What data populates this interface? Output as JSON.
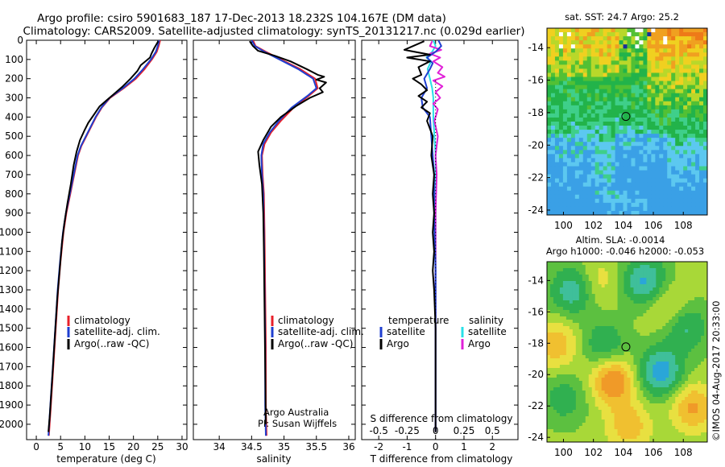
{
  "colors": {
    "climatology": "#e8202a",
    "satellite": "#1f3fd0",
    "argo": "#000000",
    "sal_sat": "#28e0e8",
    "sal_argo": "#e020d8"
  },
  "header": {
    "title_line1": "Argo profile: csiro 5901683_187 17-Dec-2013 18.232S 104.167E (DM data)",
    "title_line2": "Climatology: CARS2009. Satellite-adjusted climatology: synTS_20131217.nc (0.029d earlier)"
  },
  "depth_axis": {
    "ticks": [
      0,
      100,
      200,
      300,
      400,
      500,
      600,
      700,
      800,
      900,
      1000,
      1100,
      1200,
      1300,
      1400,
      1500,
      1600,
      1700,
      1800,
      1900,
      2000
    ],
    "range": [
      0,
      2080
    ]
  },
  "chart_data": [
    {
      "type": "line",
      "id": "temperature",
      "xlabel": "temperature (deg C)",
      "xlim": [
        -2,
        31
      ],
      "xticks": [
        0,
        5,
        10,
        15,
        20,
        25,
        30
      ],
      "ylabel": "depth",
      "legend": [
        "climatology",
        "satellite-adj. clim.",
        "Argo(..raw -QC)"
      ],
      "series": [
        {
          "name": "climatology",
          "points": [
            [
              25.5,
              0
            ],
            [
              25.2,
              30
            ],
            [
              24.8,
              60
            ],
            [
              23.8,
              100
            ],
            [
              22.3,
              150
            ],
            [
              20.5,
              200
            ],
            [
              18,
              250
            ],
            [
              15.2,
              300
            ],
            [
              13.5,
              350
            ],
            [
              12.3,
              400
            ],
            [
              11.3,
              450
            ],
            [
              10.3,
              500
            ],
            [
              9.3,
              550
            ],
            [
              8.6,
              600
            ],
            [
              7.8,
              700
            ],
            [
              7.0,
              800
            ],
            [
              6.2,
              900
            ],
            [
              5.6,
              1000
            ],
            [
              5.0,
              1150
            ],
            [
              4.5,
              1300
            ],
            [
              4.0,
              1500
            ],
            [
              3.5,
              1700
            ],
            [
              3.0,
              1900
            ],
            [
              2.6,
              2060
            ]
          ]
        },
        {
          "name": "satellite-adj. clim.",
          "points": [
            [
              25.3,
              0
            ],
            [
              25.0,
              30
            ],
            [
              24.6,
              60
            ],
            [
              23.6,
              100
            ],
            [
              22.0,
              150
            ],
            [
              20.2,
              200
            ],
            [
              17.8,
              250
            ],
            [
              15.1,
              300
            ],
            [
              13.4,
              350
            ],
            [
              12.2,
              400
            ],
            [
              11.2,
              450
            ],
            [
              10.2,
              500
            ],
            [
              9.2,
              550
            ],
            [
              8.5,
              600
            ],
            [
              7.7,
              700
            ],
            [
              6.9,
              800
            ],
            [
              6.1,
              900
            ],
            [
              5.5,
              1000
            ],
            [
              4.9,
              1150
            ],
            [
              4.4,
              1300
            ],
            [
              3.9,
              1500
            ],
            [
              3.4,
              1700
            ],
            [
              2.9,
              1900
            ],
            [
              2.5,
              2060
            ]
          ]
        },
        {
          "name": "Argo(..raw -QC)",
          "points": [
            [
              25.1,
              5
            ],
            [
              24.3,
              40
            ],
            [
              23.7,
              70
            ],
            [
              23.4,
              90
            ],
            [
              21.5,
              130
            ],
            [
              20.8,
              160
            ],
            [
              19.4,
              200
            ],
            [
              17.8,
              240
            ],
            [
              16,
              280
            ],
            [
              14.6,
              310
            ],
            [
              13.0,
              345
            ],
            [
              11.8,
              390
            ],
            [
              10.7,
              430
            ],
            [
              9.9,
              470
            ],
            [
              9.0,
              520
            ],
            [
              8.3,
              580
            ],
            [
              7.7,
              650
            ],
            [
              7.1,
              750
            ],
            [
              6.4,
              850
            ],
            [
              5.8,
              950
            ],
            [
              5.3,
              1050
            ],
            [
              4.8,
              1200
            ],
            [
              4.3,
              1350
            ],
            [
              3.8,
              1550
            ],
            [
              3.3,
              1750
            ],
            [
              2.8,
              1950
            ],
            [
              2.5,
              2040
            ]
          ]
        }
      ]
    },
    {
      "type": "line",
      "id": "salinity",
      "xlabel": "salinity",
      "xlim": [
        33.6,
        36.1
      ],
      "xticks": [
        34,
        34.5,
        35,
        35.5,
        36
      ],
      "legend": [
        "climatology",
        "satellite-adj. clim.",
        "Argo(..raw -QC)"
      ],
      "annotation": [
        "Argo Australia",
        "PI: Susan Wijffels"
      ],
      "series": [
        {
          "name": "climatology",
          "points": [
            [
              34.52,
              0
            ],
            [
              34.56,
              30
            ],
            [
              34.72,
              60
            ],
            [
              34.95,
              100
            ],
            [
              35.25,
              150
            ],
            [
              35.48,
              200
            ],
            [
              35.52,
              250
            ],
            [
              35.38,
              290
            ],
            [
              35.15,
              350
            ],
            [
              34.95,
              420
            ],
            [
              34.8,
              480
            ],
            [
              34.7,
              540
            ],
            [
              34.66,
              600
            ],
            [
              34.67,
              700
            ],
            [
              34.69,
              800
            ],
            [
              34.7,
              1000
            ],
            [
              34.71,
              1300
            ],
            [
              34.72,
              1600
            ],
            [
              34.72,
              1900
            ],
            [
              34.73,
              2060
            ]
          ]
        },
        {
          "name": "satellite-adj. clim.",
          "points": [
            [
              34.5,
              0
            ],
            [
              34.55,
              30
            ],
            [
              34.7,
              60
            ],
            [
              34.93,
              100
            ],
            [
              35.22,
              150
            ],
            [
              35.45,
              200
            ],
            [
              35.5,
              250
            ],
            [
              35.36,
              290
            ],
            [
              35.12,
              350
            ],
            [
              34.92,
              420
            ],
            [
              34.78,
              480
            ],
            [
              34.68,
              540
            ],
            [
              34.65,
              600
            ],
            [
              34.66,
              700
            ],
            [
              34.68,
              800
            ],
            [
              34.69,
              1000
            ],
            [
              34.7,
              1300
            ],
            [
              34.71,
              1600
            ],
            [
              34.71,
              1900
            ],
            [
              34.72,
              2060
            ]
          ]
        },
        {
          "name": "Argo(..raw -QC)",
          "points": [
            [
              34.47,
              5
            ],
            [
              34.52,
              30
            ],
            [
              34.6,
              55
            ],
            [
              34.85,
              80
            ],
            [
              35.1,
              110
            ],
            [
              35.35,
              150
            ],
            [
              35.52,
              180
            ],
            [
              35.62,
              190
            ],
            [
              35.5,
              205
            ],
            [
              35.65,
              220
            ],
            [
              35.55,
              250
            ],
            [
              35.6,
              270
            ],
            [
              35.4,
              300
            ],
            [
              35.2,
              340
            ],
            [
              34.95,
              400
            ],
            [
              34.8,
              450
            ],
            [
              34.68,
              520
            ],
            [
              34.6,
              580
            ],
            [
              34.62,
              650
            ],
            [
              34.66,
              750
            ],
            [
              34.68,
              900
            ],
            [
              34.69,
              1100
            ],
            [
              34.7,
              1400
            ],
            [
              34.71,
              1700
            ],
            [
              34.72,
              2000
            ]
          ]
        }
      ]
    },
    {
      "type": "line",
      "id": "difference",
      "xlabel": "T difference from climatology",
      "xlabel_top": "S difference from climatology",
      "xlim": [
        -2.6,
        2.9
      ],
      "xticks": [
        -2,
        -1,
        0,
        1,
        2
      ],
      "xticks_top": [
        -0.5,
        -0.25,
        0,
        0.25,
        0.5
      ],
      "legend_temperature": {
        "title": "temperature",
        "items": [
          "satellite",
          "Argo"
        ]
      },
      "legend_salinity": {
        "title": "salinity",
        "items": [
          "satellite",
          "Argo"
        ]
      },
      "series": [
        {
          "name": "temperature satellite",
          "points": [
            [
              0.1,
              0
            ],
            [
              0.2,
              30
            ],
            [
              0.0,
              60
            ],
            [
              -0.3,
              90
            ],
            [
              -0.1,
              120
            ],
            [
              -0.2,
              150
            ],
            [
              -0.4,
              200
            ],
            [
              -0.3,
              250
            ],
            [
              -0.5,
              300
            ],
            [
              -0.45,
              350
            ],
            [
              -0.2,
              400
            ],
            [
              -0.15,
              500
            ],
            [
              -0.1,
              600
            ],
            [
              -0.05,
              700
            ],
            [
              -0.05,
              900
            ],
            [
              0,
              1200
            ],
            [
              0,
              1600
            ],
            [
              0,
              2040
            ]
          ]
        },
        {
          "name": "temperature Argo",
          "points": [
            [
              -0.4,
              5
            ],
            [
              -1.1,
              50
            ],
            [
              -0.2,
              75
            ],
            [
              -1.0,
              90
            ],
            [
              -0.2,
              110
            ],
            [
              -0.6,
              140
            ],
            [
              -0.5,
              180
            ],
            [
              -0.8,
              200
            ],
            [
              -0.5,
              230
            ],
            [
              -0.3,
              260
            ],
            [
              -0.6,
              290
            ],
            [
              -0.3,
              320
            ],
            [
              -0.5,
              350
            ],
            [
              -0.2,
              380
            ],
            [
              -0.3,
              420
            ],
            [
              -0.1,
              500
            ],
            [
              -0.15,
              600
            ],
            [
              -0.05,
              700
            ],
            [
              -0.1,
              800
            ],
            [
              -0.05,
              900
            ],
            [
              -0.1,
              1000
            ],
            [
              -0.05,
              1100
            ],
            [
              -0.1,
              1200
            ],
            [
              -0.05,
              1300
            ],
            [
              0,
              1500
            ],
            [
              0,
              2040
            ]
          ]
        },
        {
          "name": "salinity satellite",
          "points": [
            [
              -0.02,
              0
            ],
            [
              0.0,
              30
            ],
            [
              -0.03,
              60
            ],
            [
              -0.08,
              90
            ],
            [
              -0.04,
              110
            ],
            [
              -0.07,
              150
            ],
            [
              -0.05,
              200
            ],
            [
              -0.03,
              250
            ],
            [
              -0.02,
              300
            ],
            [
              -0.02,
              400
            ],
            [
              -0.01,
              500
            ],
            [
              0,
              600
            ],
            [
              0,
              800
            ],
            [
              0,
              1200
            ],
            [
              0,
              1600
            ],
            [
              0,
              2040
            ]
          ]
        },
        {
          "name": "salinity Argo",
          "points": [
            [
              -0.03,
              5
            ],
            [
              -0.05,
              30
            ],
            [
              0.05,
              50
            ],
            [
              -0.05,
              70
            ],
            [
              0.04,
              90
            ],
            [
              -0.02,
              110
            ],
            [
              0.06,
              140
            ],
            [
              0.02,
              170
            ],
            [
              0.08,
              190
            ],
            [
              -0.02,
              210
            ],
            [
              0.06,
              240
            ],
            [
              0.0,
              270
            ],
            [
              0.04,
              300
            ],
            [
              -0.02,
              330
            ],
            [
              0.02,
              360
            ],
            [
              -0.01,
              420
            ],
            [
              0.02,
              500
            ],
            [
              0.0,
              600
            ],
            [
              0.01,
              700
            ],
            [
              0,
              900
            ],
            [
              0,
              1200
            ],
            [
              0,
              1600
            ],
            [
              0,
              2040
            ]
          ]
        }
      ]
    },
    {
      "type": "heatmap",
      "id": "sst_map",
      "title": "sat. SST: 24.7 Argo: 25.2",
      "xticks": [
        100,
        102,
        104,
        106,
        108
      ],
      "yticks": [
        -14,
        -16,
        -18,
        -20,
        -22,
        -24
      ],
      "xlim": [
        98.9,
        109.6
      ],
      "ylim": [
        -24.3,
        -12.8
      ],
      "marker": {
        "lon": 104.167,
        "lat": -18.232
      }
    },
    {
      "type": "heatmap",
      "id": "sla_map",
      "title_line1": "Altim. SLA: -0.0014",
      "title_line2": "Argo h1000: -0.046 h2000: -0.053",
      "xticks": [
        100,
        102,
        104,
        106,
        108
      ],
      "yticks": [
        -14,
        -16,
        -18,
        -20,
        -22,
        -24
      ],
      "xlim": [
        98.9,
        109.6
      ],
      "ylim": [
        -24.3,
        -12.8
      ],
      "marker": {
        "lon": 104.167,
        "lat": -18.232
      }
    }
  ],
  "footer": {
    "stamp": "©IMOS 04-Aug-2017 20:33:00"
  }
}
